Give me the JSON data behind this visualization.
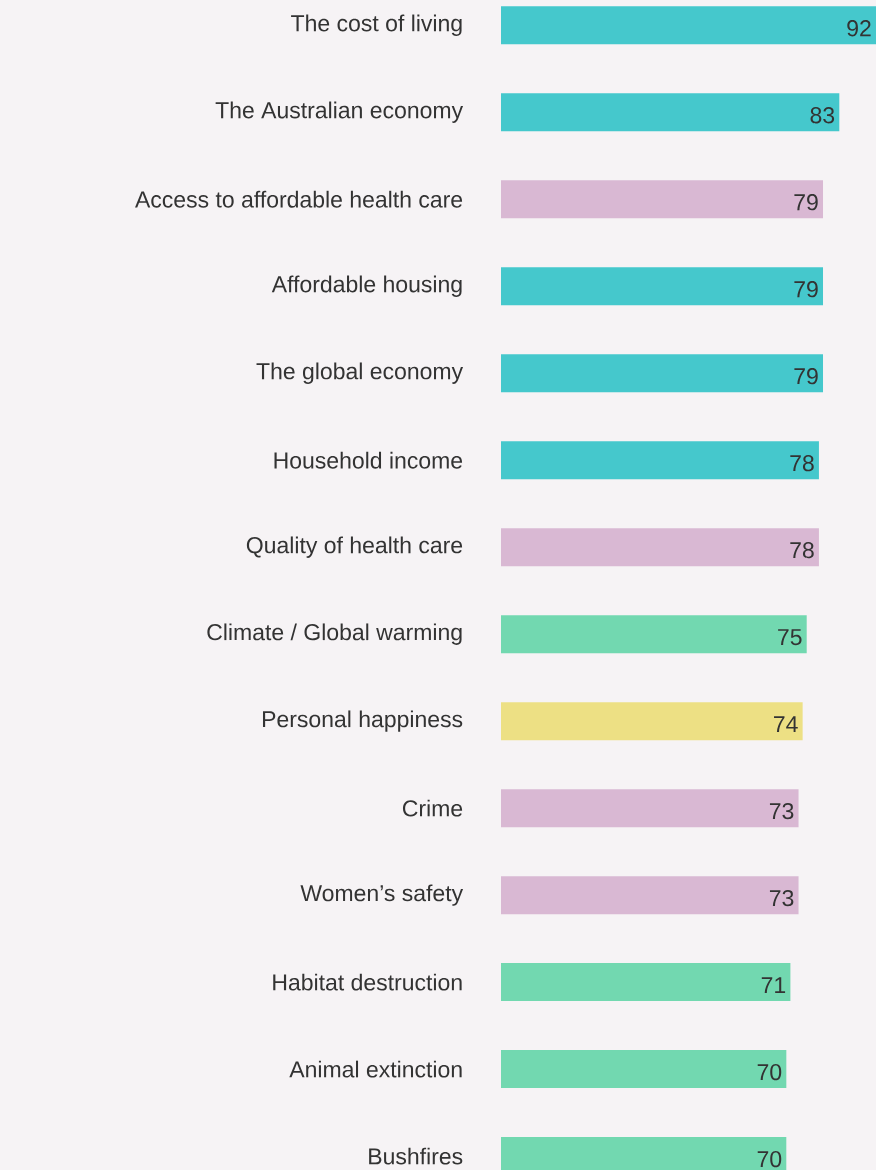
{
  "chart_data": {
    "type": "bar",
    "orientation": "horizontal",
    "data_labels": true,
    "categories": [
      "The cost of living",
      "The Australian economy",
      "Access to affordable health care",
      "Affordable housing",
      "The global economy",
      "Household income",
      "Quality of health care",
      "Climate / Global warming",
      "Personal happiness",
      "Crime",
      "Women’s safety",
      "Habitat destruction",
      "Animal extinction",
      "Bushfires"
    ],
    "values": [
      92,
      83,
      79,
      79,
      79,
      78,
      78,
      75,
      74,
      73,
      73,
      71,
      70,
      70
    ],
    "colors": [
      "#45c8cc",
      "#45c8cc",
      "#d9b8d3",
      "#45c8cc",
      "#45c8cc",
      "#45c8cc",
      "#d9b8d3",
      "#72d8b0",
      "#ede084",
      "#d9b8d3",
      "#d9b8d3",
      "#72d8b0",
      "#72d8b0",
      "#72d8b0"
    ]
  }
}
